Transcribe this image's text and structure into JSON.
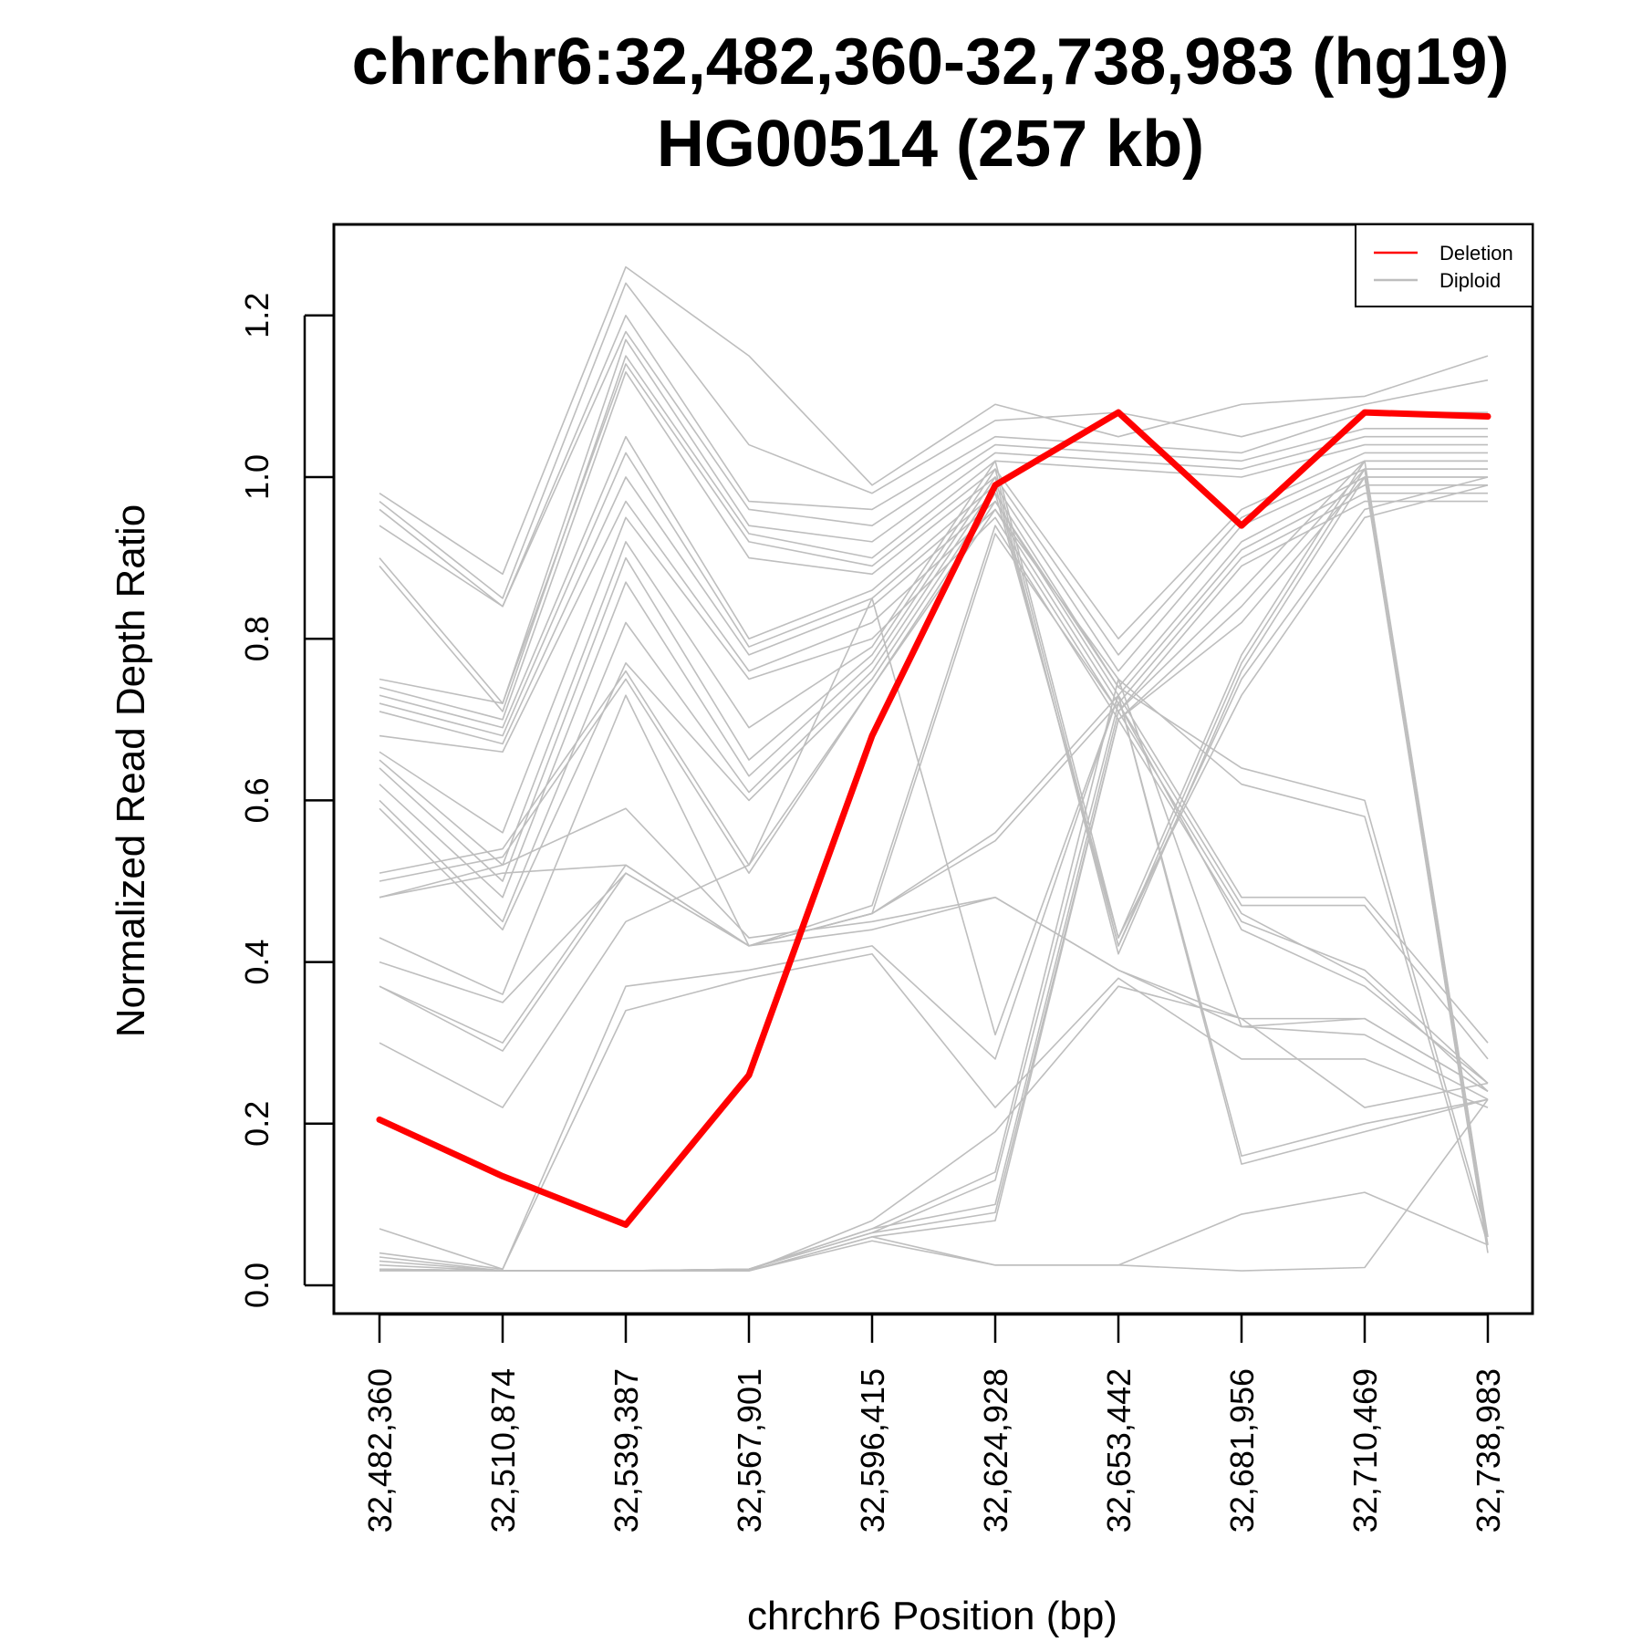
{
  "chart_data": {
    "type": "line",
    "title_line1": "chrchr6:32,482,360-32,738,983 (hg19)",
    "title_line2": "HG00514 (257 kb)",
    "xlabel": "chrchr6 Position (bp)",
    "ylabel": "Normalized Read Depth Ratio",
    "x": [
      "32,482,360",
      "32,510,874",
      "32,539,387",
      "32,567,901",
      "32,596,415",
      "32,624,928",
      "32,653,442",
      "32,681,956",
      "32,710,469",
      "32,738,983"
    ],
    "ylim": [
      0.0,
      1.3
    ],
    "yticks": [
      "0.0",
      "0.2",
      "0.4",
      "0.6",
      "0.8",
      "1.0",
      "1.2"
    ],
    "grid": false,
    "legend_position": "top-right",
    "legend": [
      {
        "label": "Deletion",
        "color": "#ff0000"
      },
      {
        "label": "Diploid",
        "color": "#bebebe"
      }
    ],
    "deletion": {
      "name": "Deletion",
      "color": "#ff0000",
      "values": [
        0.205,
        0.135,
        0.075,
        0.26,
        0.68,
        0.99,
        1.08,
        0.94,
        1.08,
        1.075
      ]
    },
    "diploid": {
      "name": "Diploid",
      "color": "#bebebe",
      "series": [
        [
          0.98,
          0.88,
          1.26,
          1.15,
          0.99,
          1.09,
          1.05,
          1.09,
          1.1,
          1.15
        ],
        [
          0.97,
          0.85,
          1.24,
          1.04,
          0.98,
          1.07,
          1.08,
          1.05,
          1.09,
          1.12
        ],
        [
          0.96,
          0.84,
          1.2,
          0.97,
          0.96,
          1.05,
          1.04,
          1.03,
          1.08,
          1.08
        ],
        [
          0.94,
          0.84,
          1.18,
          0.96,
          0.94,
          1.04,
          1.03,
          1.02,
          1.06,
          1.06
        ],
        [
          0.9,
          0.72,
          1.17,
          0.94,
          0.92,
          1.03,
          1.02,
          1.01,
          1.05,
          1.05
        ],
        [
          0.89,
          0.71,
          1.15,
          0.93,
          0.9,
          1.02,
          1.01,
          1.0,
          1.04,
          1.04
        ],
        [
          0.75,
          0.72,
          1.14,
          0.92,
          0.89,
          1.01,
          0.8,
          0.96,
          1.03,
          1.03
        ],
        [
          0.74,
          0.7,
          1.13,
          0.9,
          0.88,
          1.0,
          0.78,
          0.95,
          1.02,
          1.02
        ],
        [
          0.73,
          0.69,
          1.05,
          0.8,
          0.86,
          0.99,
          0.76,
          0.94,
          1.01,
          1.01
        ],
        [
          0.72,
          0.68,
          1.03,
          0.79,
          0.85,
          0.98,
          0.74,
          0.92,
          1.0,
          1.0
        ],
        [
          0.71,
          0.67,
          1.0,
          0.78,
          0.84,
          0.97,
          0.73,
          0.91,
          0.99,
          0.99
        ],
        [
          0.68,
          0.66,
          0.97,
          0.76,
          0.82,
          0.96,
          0.72,
          0.9,
          0.98,
          0.98
        ],
        [
          0.66,
          0.56,
          0.95,
          0.75,
          0.8,
          0.95,
          0.71,
          0.89,
          0.97,
          0.97
        ],
        [
          0.65,
          0.52,
          0.92,
          0.69,
          0.79,
          1.02,
          0.43,
          0.78,
          1.02,
          1.02
        ],
        [
          0.64,
          0.5,
          0.9,
          0.65,
          0.78,
          1.01,
          0.42,
          0.77,
          1.01,
          1.01
        ],
        [
          0.62,
          0.48,
          0.87,
          0.63,
          0.77,
          1.0,
          0.41,
          0.76,
          1.0,
          1.0
        ],
        [
          0.6,
          0.45,
          0.82,
          0.61,
          0.76,
          0.99,
          0.42,
          0.75,
          0.96,
          1.0
        ],
        [
          0.59,
          0.44,
          0.77,
          0.6,
          0.75,
          0.98,
          0.43,
          0.73,
          0.95,
          0.99
        ],
        [
          0.51,
          0.54,
          0.76,
          0.52,
          0.74,
          0.97,
          0.74,
          0.64,
          0.6,
          0.06
        ],
        [
          0.5,
          0.53,
          0.75,
          0.51,
          0.74,
          0.96,
          0.75,
          0.62,
          0.58,
          0.05
        ],
        [
          0.48,
          0.52,
          0.59,
          0.43,
          0.45,
          0.48,
          0.39,
          0.33,
          0.33,
          0.24
        ],
        [
          0.48,
          0.51,
          0.52,
          0.42,
          0.44,
          0.48,
          0.39,
          0.32,
          0.31,
          0.23
        ],
        [
          0.43,
          0.36,
          0.73,
          0.42,
          0.46,
          0.56,
          0.73,
          0.48,
          0.48,
          0.3
        ],
        [
          0.4,
          0.35,
          0.51,
          0.42,
          0.46,
          0.55,
          0.72,
          0.47,
          0.47,
          0.28
        ],
        [
          0.37,
          0.3,
          0.52,
          0.42,
          0.47,
          0.94,
          0.7,
          0.45,
          0.39,
          0.25
        ],
        [
          0.37,
          0.29,
          0.51,
          0.42,
          0.46,
          0.93,
          0.71,
          0.46,
          0.38,
          0.24
        ],
        [
          0.3,
          0.22,
          0.45,
          0.52,
          0.85,
          0.31,
          0.73,
          0.16,
          0.2,
          0.23
        ],
        [
          0.07,
          0.02,
          0.37,
          0.39,
          0.42,
          0.28,
          0.73,
          0.15,
          0.19,
          0.23
        ],
        [
          0.04,
          0.02,
          0.34,
          0.38,
          0.41,
          0.22,
          0.38,
          0.28,
          0.28,
          0.22
        ],
        [
          0.035,
          0.018,
          0.018,
          0.018,
          0.08,
          0.19,
          0.37,
          0.33,
          0.22,
          0.25
        ],
        [
          0.03,
          0.018,
          0.018,
          0.02,
          0.07,
          0.14,
          0.75,
          0.32,
          0.33,
          0.24
        ],
        [
          0.025,
          0.018,
          0.018,
          0.02,
          0.065,
          0.13,
          0.72,
          0.44,
          0.37,
          0.25
        ],
        [
          0.02,
          0.018,
          0.018,
          0.02,
          0.07,
          0.1,
          0.71,
          0.86,
          1.02,
          0.06
        ],
        [
          0.02,
          0.018,
          0.018,
          0.02,
          0.065,
          0.09,
          0.7,
          0.84,
          1.01,
          0.05
        ],
        [
          0.02,
          0.018,
          0.018,
          0.018,
          0.06,
          0.08,
          0.7,
          0.82,
          1.0,
          0.04
        ],
        [
          0.02,
          0.018,
          0.018,
          0.018,
          0.055,
          0.025,
          0.025,
          0.088,
          0.115,
          0.05
        ],
        [
          0.018,
          0.018,
          0.018,
          0.018,
          0.06,
          0.025,
          0.025,
          0.018,
          0.022,
          0.23
        ]
      ]
    }
  }
}
